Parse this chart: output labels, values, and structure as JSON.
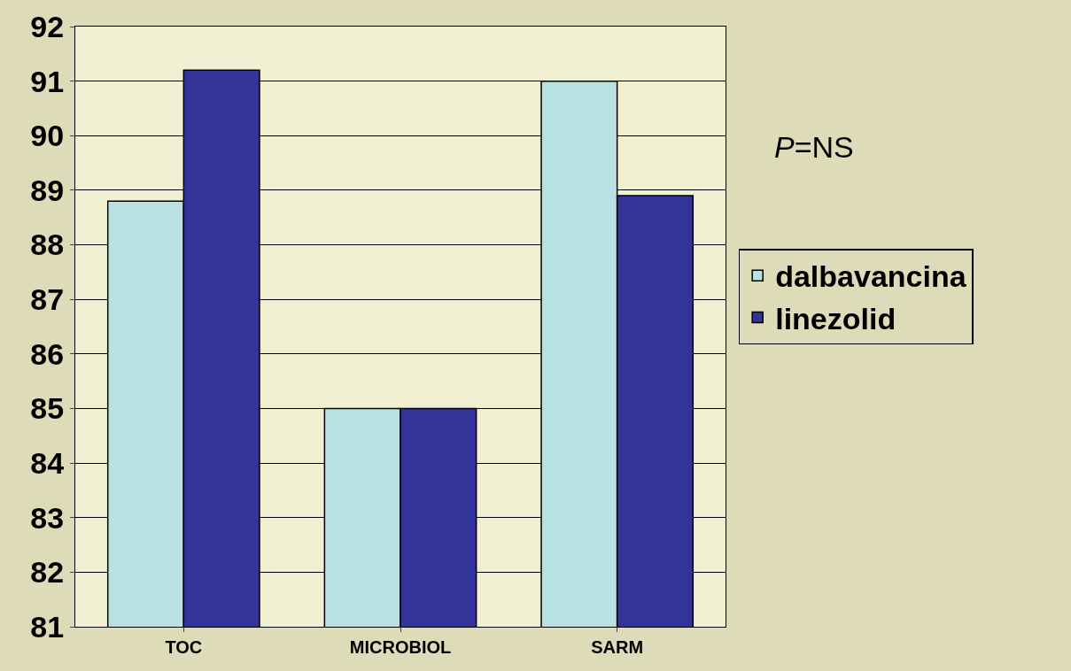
{
  "chart_data": {
    "type": "bar",
    "categories": [
      "TOC",
      "MICROBIOL",
      "SARM"
    ],
    "series": [
      {
        "name": "dalbavancina",
        "color": "#b9e0e3",
        "values": [
          88.8,
          85,
          91
        ]
      },
      {
        "name": "linezolid",
        "color": "#333399",
        "values": [
          91.2,
          85,
          88.9
        ]
      }
    ],
    "ylim": [
      81,
      92
    ],
    "yticks": [
      81,
      82,
      83,
      84,
      85,
      86,
      87,
      88,
      89,
      90,
      91,
      92
    ],
    "grid": "y",
    "legend": "right",
    "annotations": [
      "P=NS"
    ]
  }
}
